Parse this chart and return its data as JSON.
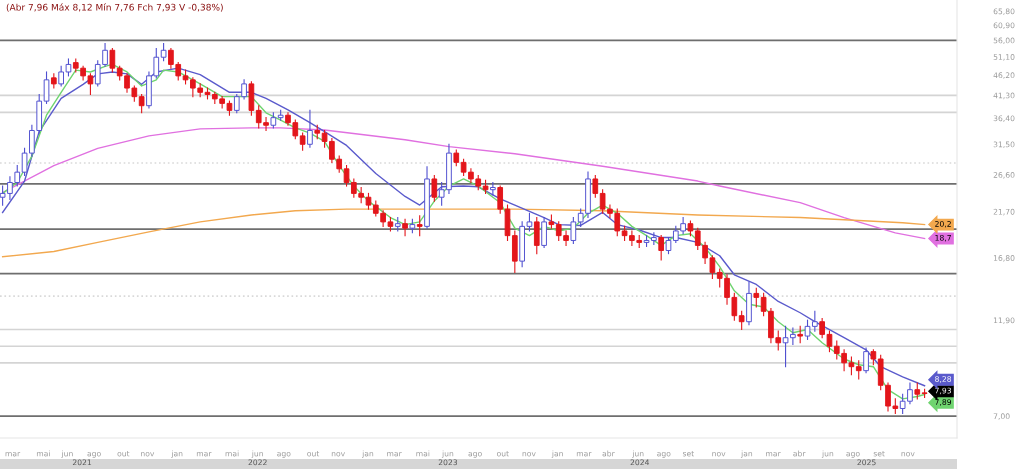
{
  "chart_data": {
    "type": "candlestick",
    "annotations": [
      "(Abr 7,96 Máx 8,12 Mín 7,76 Fch 7,93 V -0,38%)",
      {
        "text": "7,93",
        "x": "2025-12-26",
        "y": 7.93
      }
    ],
    "x": [
      "2021-02-26",
      "2021-03-12",
      "2021-03-26",
      "2021-04-09",
      "2021-04-23",
      "2021-05-07",
      "2021-05-21",
      "2021-06-04",
      "2021-06-18",
      "2021-07-02",
      "2021-07-16",
      "2021-07-30",
      "2021-08-13",
      "2021-08-27",
      "2021-09-10",
      "2021-09-24",
      "2021-10-08",
      "2021-10-22",
      "2021-11-05",
      "2021-11-19",
      "2021-12-03",
      "2021-12-17",
      "2021-12-31",
      "2022-01-14",
      "2022-01-28",
      "2022-02-11",
      "2022-02-25",
      "2022-03-11",
      "2022-03-25",
      "2022-04-08",
      "2022-04-22",
      "2022-05-06",
      "2022-05-20",
      "2022-06-03",
      "2022-06-17",
      "2022-07-01",
      "2022-07-15",
      "2022-07-29",
      "2022-08-12",
      "2022-08-26",
      "2022-09-09",
      "2022-09-23",
      "2022-10-07",
      "2022-10-21",
      "2022-11-04",
      "2022-11-18",
      "2022-12-02",
      "2022-12-16",
      "2022-12-30",
      "2023-01-13",
      "2023-01-27",
      "2023-02-10",
      "2023-02-24",
      "2023-03-10",
      "2023-03-24",
      "2023-04-07",
      "2023-04-21",
      "2023-05-05",
      "2023-05-19",
      "2023-06-02",
      "2023-06-16",
      "2023-06-30",
      "2023-07-14",
      "2023-07-28",
      "2023-08-11",
      "2023-08-25",
      "2023-09-08",
      "2023-09-22",
      "2023-10-06",
      "2023-10-20",
      "2023-11-03",
      "2023-11-17",
      "2023-12-01",
      "2023-12-15",
      "2023-12-29",
      "2024-01-12",
      "2024-01-26",
      "2024-02-09",
      "2024-02-23",
      "2024-03-08",
      "2024-03-22",
      "2024-04-05",
      "2024-04-19",
      "2024-05-03",
      "2024-05-17",
      "2024-05-31",
      "2024-06-14",
      "2024-06-28",
      "2024-07-12",
      "2024-07-26",
      "2024-08-09",
      "2024-08-23",
      "2024-09-06",
      "2024-09-20",
      "2024-10-04",
      "2024-10-18",
      "2024-11-01",
      "2024-11-15",
      "2024-11-29",
      "2024-12-13",
      "2024-12-27",
      "2025-01-10",
      "2025-01-24",
      "2025-02-07",
      "2025-02-21",
      "2025-03-07",
      "2025-03-21",
      "2025-04-04",
      "2025-04-18",
      "2025-05-02",
      "2025-05-16",
      "2025-05-30",
      "2025-06-13",
      "2025-06-27",
      "2025-07-11",
      "2025-07-25",
      "2025-08-08",
      "2025-08-22",
      "2025-09-05",
      "2025-09-19",
      "2025-10-03",
      "2025-10-17",
      "2025-10-31",
      "2025-11-14",
      "2025-11-28",
      "2025-12-12",
      "2025-12-26"
    ],
    "ohlc": [
      [
        23.5,
        25.0,
        22.5,
        24.0
      ],
      [
        24.0,
        26.3,
        23.2,
        25.5
      ],
      [
        25.5,
        28.0,
        25.0,
        27.0
      ],
      [
        27.0,
        30.8,
        26.5,
        30.0
      ],
      [
        30.0,
        35.0,
        29.5,
        34.0
      ],
      [
        34.0,
        41.5,
        33.5,
        40.0
      ],
      [
        40.0,
        47.0,
        39.5,
        45.0
      ],
      [
        45.5,
        46.5,
        43.0,
        44.0
      ],
      [
        44.0,
        48.5,
        43.5,
        47.0
      ],
      [
        47.0,
        50.5,
        46.0,
        49.0
      ],
      [
        49.5,
        50.5,
        47.0,
        48.0
      ],
      [
        48.0,
        48.5,
        45.0,
        46.0
      ],
      [
        46.0,
        46.5,
        41.5,
        44.0
      ],
      [
        44.0,
        50.0,
        43.5,
        49.0
      ],
      [
        49.0,
        55.0,
        48.5,
        53.0
      ],
      [
        53.0,
        53.5,
        47.0,
        48.0
      ],
      [
        48.0,
        48.5,
        45.0,
        46.0
      ],
      [
        46.0,
        46.5,
        42.0,
        43.0
      ],
      [
        43.0,
        43.5,
        40.0,
        41.0
      ],
      [
        41.0,
        41.5,
        37.5,
        39.0
      ],
      [
        39.0,
        47.0,
        38.5,
        46.0
      ],
      [
        46.0,
        53.5,
        45.5,
        51.0
      ],
      [
        51.0,
        55.0,
        50.0,
        53.0
      ],
      [
        53.0,
        53.5,
        48.0,
        49.0
      ],
      [
        49.0,
        49.5,
        45.0,
        46.0
      ],
      [
        46.0,
        47.5,
        44.0,
        45.0
      ],
      [
        45.0,
        45.5,
        41.0,
        43.0
      ],
      [
        43.0,
        44.0,
        41.0,
        42.0
      ],
      [
        42.0,
        43.0,
        40.5,
        41.5
      ],
      [
        41.5,
        42.0,
        39.5,
        40.5
      ],
      [
        40.5,
        41.0,
        38.5,
        39.5
      ],
      [
        39.5,
        40.0,
        37.0,
        38.0
      ],
      [
        38.0,
        41.5,
        37.5,
        41.0
      ],
      [
        41.0,
        45.0,
        40.5,
        44.0
      ],
      [
        44.0,
        44.5,
        37.0,
        38.0
      ],
      [
        38.0,
        39.0,
        34.5,
        35.5
      ],
      [
        35.5,
        36.5,
        34.0,
        35.0
      ],
      [
        35.0,
        37.5,
        34.5,
        36.5
      ],
      [
        36.5,
        38.0,
        36.0,
        37.0
      ],
      [
        37.0,
        37.5,
        35.0,
        35.5
      ],
      [
        35.5,
        36.0,
        32.5,
        33.0
      ],
      [
        33.0,
        33.5,
        30.5,
        31.5
      ],
      [
        31.5,
        38.0,
        31.0,
        34.0
      ],
      [
        34.0,
        35.0,
        32.5,
        33.5
      ],
      [
        33.5,
        34.0,
        31.0,
        32.0
      ],
      [
        32.0,
        32.5,
        28.5,
        29.0
      ],
      [
        29.0,
        29.5,
        27.0,
        27.5
      ],
      [
        27.5,
        28.0,
        25.0,
        25.5
      ],
      [
        25.5,
        26.0,
        23.5,
        24.0
      ],
      [
        24.0,
        24.8,
        22.8,
        23.5
      ],
      [
        23.5,
        24.0,
        22.0,
        22.5
      ],
      [
        22.5,
        23.0,
        21.2,
        21.5
      ],
      [
        21.5,
        21.8,
        20.0,
        20.5
      ],
      [
        20.5,
        21.0,
        19.5,
        20.0
      ],
      [
        20.0,
        21.0,
        19.5,
        20.3
      ],
      [
        20.3,
        20.8,
        19.0,
        19.8
      ],
      [
        19.8,
        20.8,
        19.3,
        20.2
      ],
      [
        20.2,
        21.2,
        19.0,
        20.0
      ],
      [
        20.0,
        27.8,
        19.8,
        26.0
      ],
      [
        26.0,
        26.5,
        23.0,
        23.5
      ],
      [
        23.5,
        25.5,
        22.5,
        24.5
      ],
      [
        24.5,
        31.5,
        24.0,
        30.0
      ],
      [
        30.0,
        30.5,
        28.0,
        28.5
      ],
      [
        28.5,
        29.0,
        26.5,
        27.0
      ],
      [
        27.0,
        27.5,
        25.5,
        26.0
      ],
      [
        26.0,
        26.5,
        24.5,
        25.0
      ],
      [
        25.0,
        25.8,
        24.0,
        24.5
      ],
      [
        24.5,
        25.5,
        23.8,
        24.8
      ],
      [
        24.8,
        25.0,
        21.5,
        22.0
      ],
      [
        22.0,
        22.5,
        18.5,
        19.0
      ],
      [
        19.0,
        19.5,
        15.5,
        16.5
      ],
      [
        16.5,
        20.5,
        16.0,
        20.0
      ],
      [
        20.0,
        21.5,
        19.5,
        20.5
      ],
      [
        20.5,
        21.0,
        17.2,
        18.0
      ],
      [
        18.0,
        21.0,
        17.8,
        20.5
      ],
      [
        20.5,
        21.3,
        19.8,
        20.2
      ],
      [
        20.2,
        20.5,
        18.5,
        19.0
      ],
      [
        19.0,
        19.5,
        18.0,
        18.5
      ],
      [
        18.5,
        21.0,
        18.2,
        20.5
      ],
      [
        20.5,
        22.0,
        20.0,
        21.5
      ],
      [
        21.5,
        27.0,
        21.0,
        26.0
      ],
      [
        26.0,
        26.5,
        23.5,
        24.0
      ],
      [
        24.0,
        24.5,
        21.5,
        22.0
      ],
      [
        22.0,
        22.5,
        21.0,
        21.5
      ],
      [
        21.5,
        22.0,
        19.0,
        19.5
      ],
      [
        19.5,
        20.0,
        18.5,
        19.0
      ],
      [
        19.0,
        19.5,
        18.0,
        18.5
      ],
      [
        18.5,
        19.0,
        17.8,
        18.3
      ],
      [
        18.3,
        19.0,
        17.9,
        18.5
      ],
      [
        18.5,
        19.3,
        18.1,
        18.8
      ],
      [
        18.8,
        19.0,
        16.6,
        17.5
      ],
      [
        17.5,
        18.8,
        17.2,
        18.5
      ],
      [
        18.5,
        20.0,
        18.3,
        19.5
      ],
      [
        19.5,
        21.0,
        19.2,
        20.3
      ],
      [
        20.3,
        20.6,
        19.0,
        19.5
      ],
      [
        19.5,
        19.8,
        17.6,
        18.0
      ],
      [
        18.0,
        18.3,
        16.3,
        16.8
      ],
      [
        16.8,
        17.0,
        15.0,
        15.5
      ],
      [
        15.5,
        15.8,
        14.3,
        15.0
      ],
      [
        15.0,
        15.3,
        13.0,
        13.5
      ],
      [
        13.5,
        13.8,
        11.9,
        12.2
      ],
      [
        12.2,
        12.5,
        11.3,
        11.8
      ],
      [
        11.8,
        14.7,
        11.6,
        13.8
      ],
      [
        13.8,
        14.2,
        12.8,
        13.5
      ],
      [
        13.5,
        13.8,
        12.2,
        12.5
      ],
      [
        12.5,
        12.7,
        10.5,
        10.8
      ],
      [
        10.8,
        11.2,
        10.1,
        10.5
      ],
      [
        10.5,
        11.5,
        9.2,
        10.8
      ],
      [
        10.8,
        11.4,
        10.4,
        11.0
      ],
      [
        11.0,
        11.5,
        10.5,
        10.9
      ],
      [
        10.9,
        11.9,
        10.7,
        11.5
      ],
      [
        11.5,
        12.5,
        11.2,
        11.8
      ],
      [
        11.8,
        12.0,
        10.8,
        11.0
      ],
      [
        11.0,
        11.2,
        10.0,
        10.3
      ],
      [
        10.3,
        10.6,
        9.6,
        9.9
      ],
      [
        9.9,
        10.1,
        9.0,
        9.4
      ],
      [
        9.4,
        9.7,
        8.8,
        9.2
      ],
      [
        9.2,
        9.5,
        8.6,
        9.0
      ],
      [
        9.0,
        10.2,
        8.9,
        10.0
      ],
      [
        10.0,
        10.1,
        9.3,
        9.6
      ],
      [
        9.6,
        9.8,
        8.1,
        8.3
      ],
      [
        8.3,
        8.4,
        7.2,
        7.4
      ],
      [
        7.4,
        7.7,
        7.1,
        7.3
      ],
      [
        7.3,
        7.9,
        7.1,
        7.6
      ],
      [
        7.6,
        8.4,
        7.5,
        8.1
      ],
      [
        8.1,
        8.4,
        7.7,
        7.9
      ],
      [
        7.96,
        8.12,
        7.76,
        7.93
      ]
    ],
    "colors": [
      "#4f4fd0",
      "#4f4fd0",
      "#4f4fd0",
      "#4f4fd0",
      "#4f4fd0",
      "#4f4fd0",
      "#4f4fd0",
      "#e3161b",
      "#4f4fd0",
      "#4f4fd0",
      "#e3161b",
      "#e3161b",
      "#e3161b",
      "#4f4fd0",
      "#4f4fd0",
      "#e3161b",
      "#e3161b",
      "#e3161b",
      "#e3161b",
      "#e3161b",
      "#4f4fd0",
      "#4f4fd0",
      "#4f4fd0",
      "#e3161b",
      "#e3161b",
      "#e3161b",
      "#e3161b",
      "#e3161b",
      "#e3161b",
      "#e3161b",
      "#e3161b",
      "#e3161b",
      "#4f4fd0",
      "#4f4fd0",
      "#e3161b",
      "#e3161b",
      "#e3161b",
      "#4f4fd0",
      "#4f4fd0",
      "#e3161b",
      "#e3161b",
      "#e3161b",
      "#4f4fd0",
      "#e3161b",
      "#e3161b",
      "#e3161b",
      "#e3161b",
      "#e3161b",
      "#e3161b",
      "#e3161b",
      "#e3161b",
      "#e3161b",
      "#e3161b",
      "#e3161b",
      "#4f4fd0",
      "#e3161b",
      "#4f4fd0",
      "#e3161b",
      "#4f4fd0",
      "#e3161b",
      "#4f4fd0",
      "#4f4fd0",
      "#e3161b",
      "#e3161b",
      "#e3161b",
      "#e3161b",
      "#e3161b",
      "#4f4fd0",
      "#e3161b",
      "#e3161b",
      "#e3161b",
      "#4f4fd0",
      "#4f4fd0",
      "#e3161b",
      "#4f4fd0",
      "#e3161b",
      "#e3161b",
      "#e3161b",
      "#4f4fd0",
      "#4f4fd0",
      "#4f4fd0",
      "#e3161b",
      "#e3161b",
      "#e3161b",
      "#e3161b",
      "#e3161b",
      "#e3161b",
      "#e3161b",
      "#4f4fd0",
      "#4f4fd0",
      "#e3161b",
      "#4f4fd0",
      "#4f4fd0",
      "#4f4fd0",
      "#e3161b",
      "#e3161b",
      "#e3161b",
      "#e3161b",
      "#e3161b",
      "#e3161b",
      "#e3161b",
      "#e3161b",
      "#4f4fd0",
      "#e3161b",
      "#e3161b",
      "#e3161b",
      "#e3161b",
      "#4f4fd0",
      "#4f4fd0",
      "#e3161b",
      "#4f4fd0",
      "#4f4fd0",
      "#e3161b",
      "#e3161b",
      "#e3161b",
      "#e3161b",
      "#e3161b",
      "#e3161b",
      "#4f4fd0",
      "#e3161b",
      "#e3161b",
      "#e3161b",
      "#e3161b",
      "#4f4fd0",
      "#4f4fd0",
      "#e3161b",
      "#e3161b"
    ],
    "series": [
      {
        "type": "line",
        "color": "#e070e0",
        "x": [
          "2021-02-26",
          "2021-06-04",
          "2021-08-27",
          "2021-12-03",
          "2022-03-11",
          "2022-06-17",
          "2022-08-12",
          "2022-11-04",
          "2023-04-07",
          "2023-06-30",
          "2023-11-03",
          "2024-04-19",
          "2024-10-18",
          "2024-11-29",
          "2025-05-02",
          "2025-07-25",
          "2025-10-31",
          "2025-12-26"
        ],
        "values": [
          24.1,
          28.0,
          30.8,
          33.0,
          34.3,
          34.5,
          34.5,
          34.1,
          32.3,
          31.1,
          29.9,
          27.9,
          25.7,
          25.0,
          22.8,
          21.0,
          19.3,
          18.7
        ],
        "value_labels": [
          null,
          null,
          null,
          null,
          null,
          null,
          null,
          null,
          null,
          null,
          null,
          null,
          null,
          null,
          null,
          null,
          null,
          "18,7"
        ]
      },
      {
        "type": "line",
        "color": "#f2a84e",
        "x": [
          "2021-02-26",
          "2021-06-04",
          "2021-08-27",
          "2021-12-03",
          "2022-03-11",
          "2022-06-17",
          "2022-09-09",
          "2022-12-16",
          "2023-04-07",
          "2023-06-30",
          "2023-11-03",
          "2024-04-19",
          "2024-10-18",
          "2025-05-02",
          "2025-11-14",
          "2025-12-26"
        ],
        "values": [
          16.9,
          17.4,
          18.3,
          19.4,
          20.5,
          21.3,
          21.8,
          22.0,
          22.0,
          22.0,
          22.0,
          21.8,
          21.3,
          21.0,
          20.4,
          20.2
        ],
        "value_labels": [
          null,
          null,
          null,
          null,
          null,
          null,
          null,
          null,
          null,
          null,
          null,
          null,
          null,
          null,
          null,
          "20,2"
        ]
      },
      {
        "type": "line",
        "color": "#5a5acc",
        "x": [
          "2021-02-26",
          "2021-04-09",
          "2021-05-07",
          "2021-06-18",
          "2021-07-30",
          "2021-08-27",
          "2021-09-24",
          "2021-10-22",
          "2021-11-19",
          "2021-12-17",
          "2022-01-28",
          "2022-03-11",
          "2022-05-06",
          "2022-06-17",
          "2022-07-15",
          "2022-08-26",
          "2022-10-07",
          "2022-11-04",
          "2022-12-16",
          "2023-02-10",
          "2023-04-07",
          "2023-05-05",
          "2023-06-16",
          "2023-07-28",
          "2023-08-25",
          "2023-10-06",
          "2023-11-03",
          "2023-12-29",
          "2024-01-26",
          "2024-03-08",
          "2024-04-19",
          "2024-05-17",
          "2024-06-28",
          "2024-08-09",
          "2024-09-06",
          "2024-10-18",
          "2024-11-29",
          "2024-12-27",
          "2025-02-07",
          "2025-03-21",
          "2025-05-02",
          "2025-05-30",
          "2025-07-25",
          "2025-09-05",
          "2025-10-03",
          "2025-11-14",
          "2025-12-26"
        ],
        "values": [
          21.6,
          25.7,
          33.8,
          40.6,
          43.9,
          46.5,
          47.0,
          46.5,
          43.9,
          47.0,
          48.0,
          46.3,
          42.0,
          42.0,
          40.6,
          38.1,
          35.5,
          33.8,
          31.3,
          26.8,
          23.6,
          22.5,
          24.9,
          25.0,
          24.9,
          23.3,
          22.5,
          21.0,
          20.2,
          20.1,
          21.6,
          20.2,
          19.6,
          18.8,
          18.8,
          18.3,
          17.0,
          15.3,
          14.5,
          13.2,
          12.4,
          11.8,
          10.8,
          10.1,
          9.2,
          8.7,
          8.28
        ],
        "value_labels": [
          null,
          null,
          null,
          null,
          null,
          null,
          null,
          null,
          null,
          null,
          null,
          null,
          null,
          null,
          null,
          null,
          null,
          null,
          null,
          null,
          null,
          null,
          null,
          null,
          null,
          null,
          null,
          null,
          null,
          null,
          null,
          null,
          null,
          null,
          null,
          null,
          null,
          null,
          null,
          null,
          null,
          null,
          null,
          null,
          null,
          null,
          "8,28"
        ]
      },
      {
        "type": "line",
        "color": "#6fd46f",
        "x": [
          "2021-02-26",
          "2021-03-26",
          "2021-04-23",
          "2021-05-07",
          "2021-05-21",
          "2021-06-18",
          "2021-07-16",
          "2021-08-13",
          "2021-09-10",
          "2021-09-24",
          "2021-10-22",
          "2021-11-19",
          "2021-12-17",
          "2021-12-31",
          "2022-01-28",
          "2022-03-11",
          "2022-04-22",
          "2022-05-20",
          "2022-06-17",
          "2022-07-15",
          "2022-08-12",
          "2022-09-09",
          "2022-10-07",
          "2022-11-04",
          "2022-12-02",
          "2022-12-30",
          "2023-01-27",
          "2023-03-10",
          "2023-04-07",
          "2023-05-05",
          "2023-06-02",
          "2023-06-30",
          "2023-07-28",
          "2023-08-25",
          "2023-09-22",
          "2023-10-06",
          "2023-11-03",
          "2023-12-01",
          "2023-12-29",
          "2024-01-26",
          "2024-02-23",
          "2024-03-22",
          "2024-04-19",
          "2024-05-17",
          "2024-06-14",
          "2024-07-12",
          "2024-08-09",
          "2024-09-06",
          "2024-10-04",
          "2024-11-01",
          "2024-11-29",
          "2024-12-27",
          "2025-01-24",
          "2025-02-21",
          "2025-03-21",
          "2025-04-18",
          "2025-05-16",
          "2025-06-13",
          "2025-07-25",
          "2025-08-22",
          "2025-09-19",
          "2025-10-17",
          "2025-11-14",
          "2025-12-12",
          "2025-12-26"
        ],
        "values": [
          24.0,
          25.5,
          29.5,
          33.0,
          37.0,
          42.0,
          47.5,
          47.0,
          48.5,
          49.0,
          47.0,
          43.5,
          45.0,
          47.5,
          47.0,
          44.0,
          41.0,
          41.0,
          41.0,
          37.5,
          36.0,
          34.5,
          33.5,
          32.0,
          28.0,
          25.0,
          23.0,
          21.0,
          20.2,
          20.5,
          23.0,
          25.0,
          26.0,
          25.0,
          23.5,
          22.8,
          19.8,
          19.0,
          20.0,
          19.5,
          19.8,
          21.5,
          22.5,
          21.5,
          20.0,
          19.0,
          18.0,
          19.0,
          19.2,
          17.8,
          16.0,
          14.0,
          13.0,
          12.8,
          11.8,
          11.1,
          11.3,
          10.5,
          9.6,
          9.3,
          9.2,
          8.1,
          7.7,
          7.8,
          7.89
        ],
        "value_labels": [
          null,
          null,
          null,
          null,
          null,
          null,
          null,
          null,
          null,
          null,
          null,
          null,
          null,
          null,
          null,
          null,
          null,
          null,
          null,
          null,
          null,
          null,
          null,
          null,
          null,
          null,
          null,
          null,
          null,
          null,
          null,
          null,
          null,
          null,
          null,
          null,
          null,
          null,
          null,
          null,
          null,
          null,
          null,
          null,
          null,
          null,
          null,
          null,
          null,
          null,
          null,
          null,
          null,
          null,
          null,
          null,
          null,
          null,
          null,
          null,
          null,
          null,
          null,
          null,
          "7,89"
        ]
      }
    ],
    "xlim": [
      "2021-02-21",
      "2026-02-26"
    ],
    "xticks": [
      {
        "value": "2021-03-17",
        "label": "mar"
      },
      {
        "value": "2021-05-15",
        "label": "mai"
      },
      {
        "value": "2021-06-30",
        "label": "jun"
      },
      {
        "value": "2021-08-20",
        "label": "ago"
      },
      {
        "value": "2021-10-15",
        "label": "out"
      },
      {
        "value": "2021-11-30",
        "label": "nov"
      },
      {
        "value": "2022-01-26",
        "label": "jan"
      },
      {
        "value": "2022-03-18",
        "label": "mar"
      },
      {
        "value": "2022-05-11",
        "label": "mai"
      },
      {
        "value": "2022-06-29",
        "label": "jun"
      },
      {
        "value": "2022-08-18",
        "label": "ago"
      },
      {
        "value": "2022-10-13",
        "label": "out"
      },
      {
        "value": "2022-11-30",
        "label": "nov"
      },
      {
        "value": "2023-01-26",
        "label": "jan"
      },
      {
        "value": "2023-03-17",
        "label": "mar"
      },
      {
        "value": "2023-05-11",
        "label": "mai"
      },
      {
        "value": "2023-06-28",
        "label": "jun"
      },
      {
        "value": "2023-08-19",
        "label": "ago"
      },
      {
        "value": "2023-10-11",
        "label": "out"
      },
      {
        "value": "2023-11-30",
        "label": "nov"
      },
      {
        "value": "2024-01-24",
        "label": "jan"
      },
      {
        "value": "2024-03-14",
        "label": "mar"
      },
      {
        "value": "2024-04-30",
        "label": "abr"
      },
      {
        "value": "2024-06-26",
        "label": "jun"
      },
      {
        "value": "2024-08-14",
        "label": "ago"
      },
      {
        "value": "2024-09-30",
        "label": "set"
      },
      {
        "value": "2024-11-27",
        "label": "nov"
      },
      {
        "value": "2025-01-20",
        "label": "jan"
      },
      {
        "value": "2025-03-11",
        "label": "mar"
      },
      {
        "value": "2025-04-30",
        "label": "abr"
      },
      {
        "value": "2025-06-24",
        "label": "jun"
      },
      {
        "value": "2025-08-11",
        "label": "ago"
      },
      {
        "value": "2025-09-30",
        "label": "set"
      },
      {
        "value": "2025-11-24",
        "label": "nov"
      }
    ],
    "x2lim": [
      "2021-02-21",
      "2026-02-26"
    ],
    "x2ticks": [
      {
        "value": "2021-07-28",
        "label": "2021"
      },
      {
        "value": "2022-06-29",
        "label": "2022"
      },
      {
        "value": "2023-06-28",
        "label": "2023"
      },
      {
        "value": "2024-06-29",
        "label": "2024"
      },
      {
        "value": "2025-09-06",
        "label": "2025"
      }
    ],
    "log": true,
    "ylim": [
      6.2,
      70
    ],
    "yticks": [
      {
        "value": 7.0,
        "label": "7,00"
      },
      {
        "value": 11.9,
        "label": "11,90"
      },
      {
        "value": 16.8,
        "label": "16,80"
      },
      {
        "value": 21.7,
        "label": "21,70"
      },
      {
        "value": 26.6,
        "label": "26,60"
      },
      {
        "value": 31.5,
        "label": "31,50"
      },
      {
        "value": 36.4,
        "label": "36,40"
      },
      {
        "value": 41.3,
        "label": "41,30"
      },
      {
        "value": 46.2,
        "label": "46,20"
      },
      {
        "value": 51.1,
        "label": "51,10"
      },
      {
        "value": 56.0,
        "label": "56,00"
      },
      {
        "value": 60.9,
        "label": "60,90"
      },
      {
        "value": 65.8,
        "label": "65,80"
      }
    ],
    "ref_lines": [
      {
        "axis": "y",
        "value": 56.0,
        "color": "#6e6e6e"
      },
      {
        "axis": "y",
        "value": 41.3,
        "color": "#d4d4d4"
      },
      {
        "axis": "y",
        "value": 37.6,
        "color": "#d4d4d4"
      },
      {
        "axis": "y",
        "value": 25.3,
        "color": "#6e6e6e"
      },
      {
        "axis": "y",
        "value": 19.7,
        "color": "#6e6e6e"
      },
      {
        "axis": "y",
        "value": 15.4,
        "color": "#6e6e6e"
      },
      {
        "axis": "y",
        "value": 11.3,
        "color": "#d4d4d4"
      },
      {
        "axis": "y",
        "value": 10.3,
        "color": "#d4d4d4"
      },
      {
        "axis": "y",
        "value": 9.4,
        "color": "#d4d4d4"
      },
      {
        "axis": "y",
        "value": 7.0,
        "color": "#6e6e6e"
      },
      {
        "axis": "y",
        "value": 28.4,
        "color": "#d9d9d9",
        "line_style": "dotted"
      },
      {
        "axis": "y",
        "value": 13.6,
        "color": "#d9d9d9",
        "line_style": "dotted"
      }
    ]
  }
}
